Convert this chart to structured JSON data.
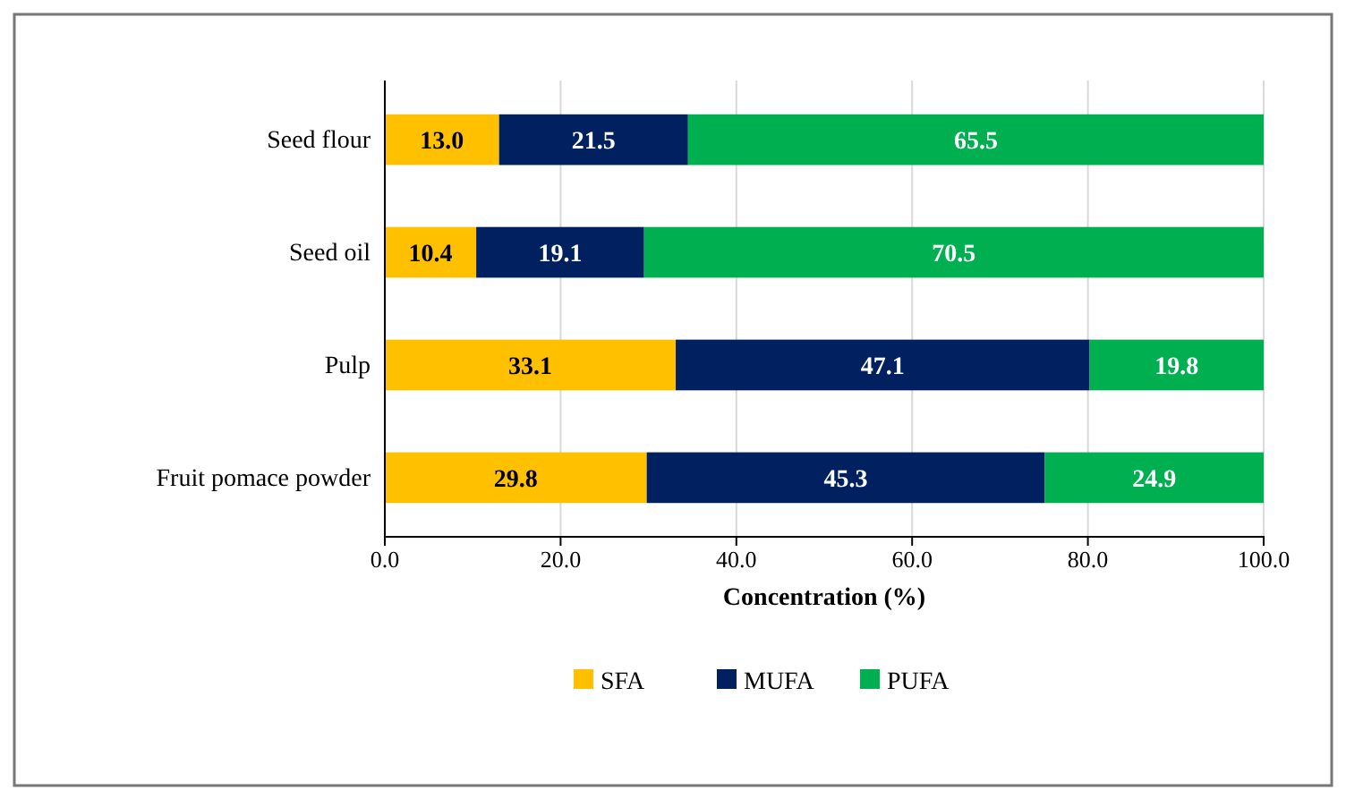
{
  "chart_data": {
    "type": "bar",
    "orientation": "horizontal",
    "stacked": true,
    "xlabel": "Concentration (%)",
    "categories": [
      "Seed flour",
      "Seed oil",
      "Pulp",
      "Fruit pomace powder"
    ],
    "series": [
      {
        "name": "SFA",
        "color": "#ffc000",
        "values": [
          13.0,
          10.4,
          33.1,
          29.8
        ],
        "value_labels": [
          "13.0",
          "10.4",
          "33.1",
          "29.8"
        ]
      },
      {
        "name": "MUFA",
        "color": "#002060",
        "values": [
          21.5,
          19.1,
          47.1,
          45.3
        ],
        "value_labels": [
          "21.5",
          "19.1",
          "47.1",
          "45.3"
        ]
      },
      {
        "name": "PUFA",
        "color": "#00b050",
        "values": [
          65.5,
          70.5,
          19.8,
          24.9
        ],
        "value_labels": [
          "65.5",
          "70.5",
          "19.8",
          "24.9"
        ]
      }
    ],
    "xlim": [
      0,
      100
    ],
    "xticks": [
      {
        "value": 0,
        "label": "0.0"
      },
      {
        "value": 20,
        "label": "20.0"
      },
      {
        "value": 40,
        "label": "40.0"
      },
      {
        "value": 60,
        "label": "60.0"
      },
      {
        "value": 80,
        "label": "80.0"
      },
      {
        "value": 100,
        "label": "100.0"
      }
    ],
    "grid": "x",
    "legend": "bottom"
  }
}
